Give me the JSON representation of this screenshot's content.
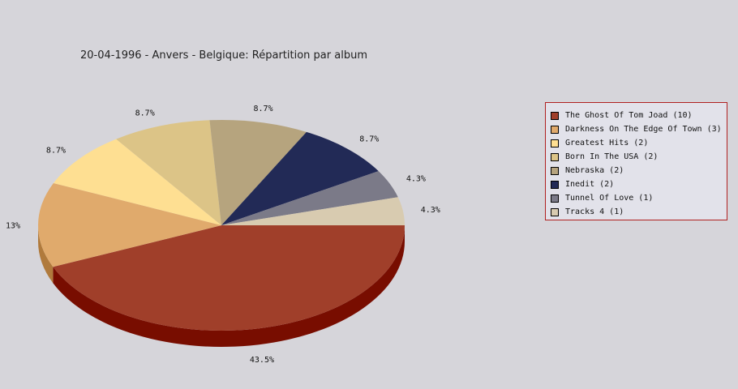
{
  "chart_data": {
    "type": "pie",
    "title": "20-04-1996 - Anvers - Belgique:  Répartition par album",
    "series": [
      {
        "name": "The Ghost Of Tom Joad",
        "count": 10,
        "percent": 43.5,
        "label": "43.5%",
        "color": "#a03f2a",
        "side_color": "#780d00"
      },
      {
        "name": "Darkness On The Edge Of Town",
        "count": 3,
        "percent": 13.0,
        "label": "13%",
        "color": "#e0aa6c",
        "side_color": "#b07a3c"
      },
      {
        "name": "Greatest Hits",
        "count": 2,
        "percent": 8.7,
        "label": "8.7%",
        "color": "#fedf92",
        "side_color": "#ceaf62"
      },
      {
        "name": "Born In The USA",
        "count": 2,
        "percent": 8.7,
        "label": "8.7%",
        "color": "#dcc487",
        "side_color": "#ac9457"
      },
      {
        "name": "Nebraska",
        "count": 2,
        "percent": 8.7,
        "label": "8.7%",
        "color": "#b6a47e",
        "side_color": "#86744e"
      },
      {
        "name": "Inedit",
        "count": 2,
        "percent": 8.7,
        "label": "8.7%",
        "color": "#222a56",
        "side_color": "#10163a"
      },
      {
        "name": "Tunnel Of Love",
        "count": 1,
        "percent": 4.3,
        "label": "4.3%",
        "color": "#7b7a88",
        "side_color": "#555462"
      },
      {
        "name": "Tracks 4",
        "count": 1,
        "percent": 4.3,
        "label": "4.3%",
        "color": "#d8cbb0",
        "side_color": "#a89b80"
      }
    ],
    "legend": {
      "position": "right",
      "entries": [
        "The Ghost Of Tom Joad (10)",
        "Darkness On The Edge Of Town (3)",
        "Greatest Hits (2)",
        "Born In The USA (2)",
        "Nebraska (2)",
        "Inedit (2)",
        "Tunnel Of Love (1)",
        "Tracks 4 (1)"
      ]
    }
  }
}
